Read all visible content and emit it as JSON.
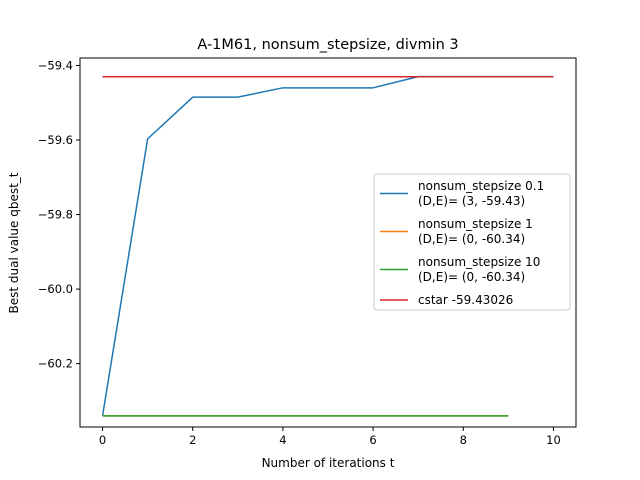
{
  "chart_data": {
    "type": "line",
    "title": "A-1M61, nonsum_stepsize, divmin 3",
    "xlabel": "Number of iterations t",
    "ylabel": "Best dual value qbest_t",
    "xlim": [
      -0.5,
      10.5
    ],
    "ylim": [
      -60.37,
      -59.38
    ],
    "xticks": [
      0,
      2,
      4,
      6,
      8,
      10
    ],
    "xtick_labels": [
      "0",
      "2",
      "4",
      "6",
      "8",
      "10"
    ],
    "yticks": [
      -60.2,
      -60.0,
      -59.8,
      -59.6,
      -59.4
    ],
    "ytick_labels": [
      "−60.2",
      "−60.0",
      "−59.8",
      "−59.6",
      "−59.4"
    ],
    "grid": false,
    "legend_position": "center-right",
    "series": [
      {
        "name": "nonsum_stepsize 0.1\n(D,E)= (3, -59.43)",
        "color": "#1f77b4",
        "x": [
          0,
          1,
          2,
          3,
          4,
          5,
          6,
          7,
          8,
          9,
          10
        ],
        "y": [
          -60.34,
          -59.597,
          -59.485,
          -59.485,
          -59.46,
          -59.46,
          -59.46,
          -59.43,
          -59.43,
          -59.43,
          -59.43
        ]
      },
      {
        "name": "nonsum_stepsize 1\n(D,E)= (0, -60.34)",
        "color": "#ff7f0e",
        "x": [
          0,
          1,
          2,
          3,
          4,
          5,
          6,
          7,
          8,
          9
        ],
        "y": [
          -60.34,
          -60.34,
          -60.34,
          -60.34,
          -60.34,
          -60.34,
          -60.34,
          -60.34,
          -60.34,
          -60.34
        ]
      },
      {
        "name": "nonsum_stepsize 10\n(D,E)= (0, -60.34)",
        "color": "#2ca02c",
        "x": [
          0,
          1,
          2,
          3,
          4,
          5,
          6,
          7,
          8,
          9
        ],
        "y": [
          -60.34,
          -60.34,
          -60.34,
          -60.34,
          -60.34,
          -60.34,
          -60.34,
          -60.34,
          -60.34,
          -60.34
        ]
      },
      {
        "name": "cstar -59.43026",
        "color": "#d62728",
        "x": [
          0,
          10
        ],
        "y": [
          -59.43026,
          -59.43026
        ]
      }
    ]
  }
}
